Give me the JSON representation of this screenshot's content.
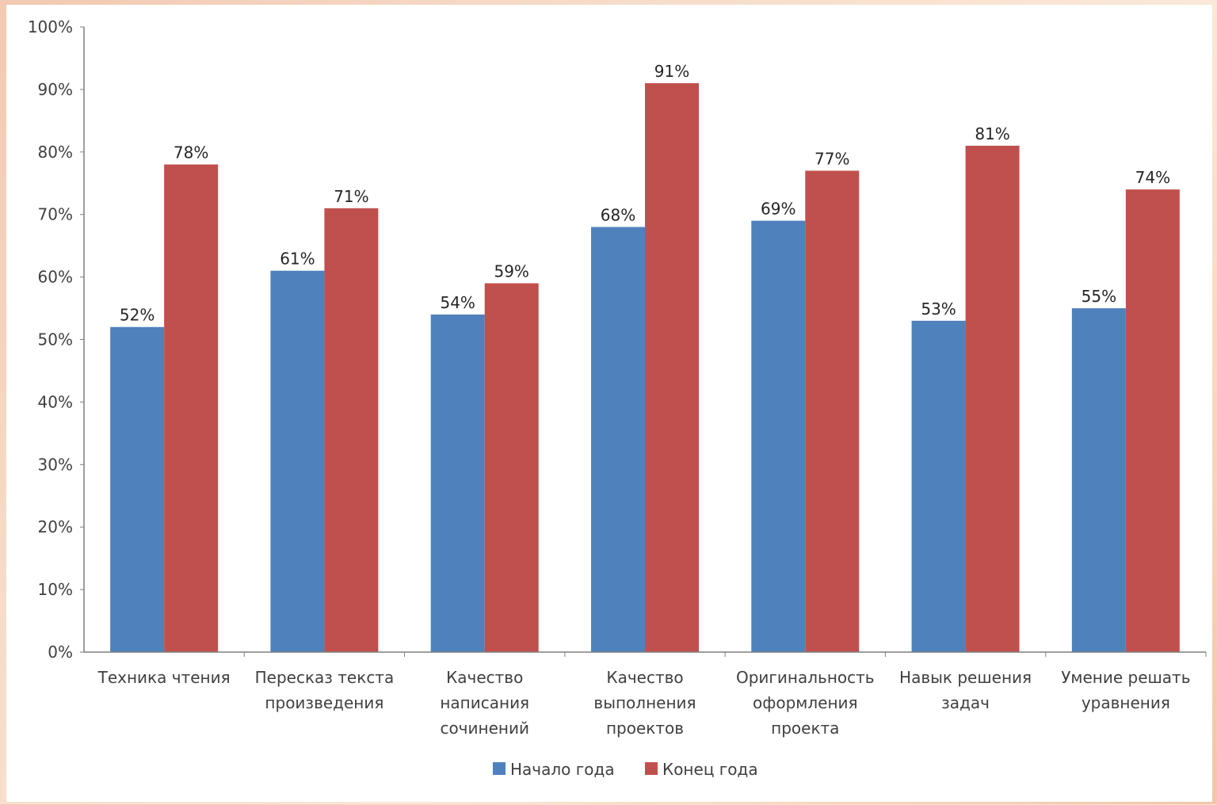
{
  "chart_data": {
    "type": "bar",
    "categories": [
      [
        "Техника чтения"
      ],
      [
        "Пересказ текста",
        "произведения"
      ],
      [
        "Качество",
        "написания",
        "сочинений"
      ],
      [
        "Качество",
        "выполнения",
        "проектов"
      ],
      [
        "Оригинальность",
        "оформления",
        "проекта"
      ],
      [
        "Навык решения",
        "задач"
      ],
      [
        "Умение решать",
        "уравнения"
      ]
    ],
    "series": [
      {
        "name": "Начало года",
        "color": "#4f81bd",
        "values": [
          52,
          61,
          54,
          68,
          69,
          53,
          55
        ],
        "labels": [
          "52%",
          "61%",
          "54%",
          "68%",
          "69%",
          "53%",
          "55%"
        ]
      },
      {
        "name": "Конец года",
        "color": "#c0504d",
        "values": [
          78,
          71,
          59,
          91,
          77,
          81,
          74
        ],
        "labels": [
          "78%",
          "71%",
          "59%",
          "91%",
          "77%",
          "81%",
          "74%"
        ]
      }
    ],
    "ylim": [
      0,
      100
    ],
    "yticks": [
      "0%",
      "10%",
      "20%",
      "30%",
      "40%",
      "50%",
      "60%",
      "70%",
      "80%",
      "90%",
      "100%"
    ],
    "grid": false,
    "legend": "bottom"
  }
}
